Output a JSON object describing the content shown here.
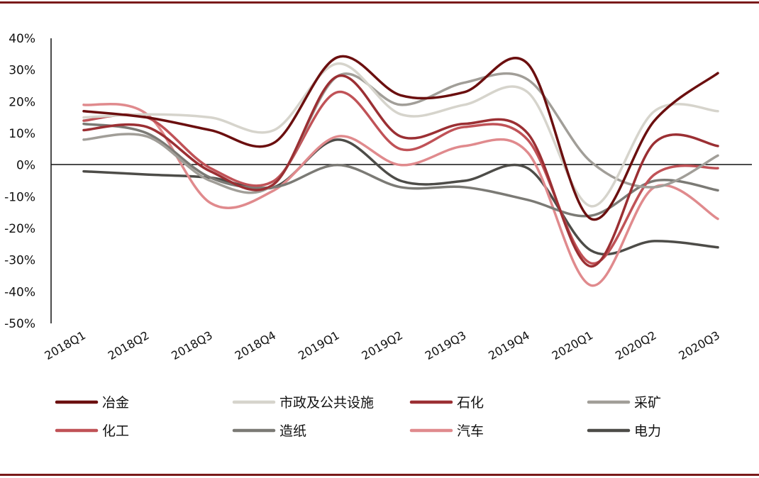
{
  "chart_data": {
    "type": "line",
    "title": "",
    "xlabel": "",
    "ylabel": "",
    "categories": [
      "2018Q1",
      "2018Q2",
      "2018Q3",
      "2018Q4",
      "2019Q1",
      "2019Q2",
      "2019Q3",
      "2019Q4",
      "2020Q1",
      "2020Q2",
      "2020Q3"
    ],
    "ylim": [
      -50,
      40
    ],
    "yticks": [
      -50,
      -40,
      -30,
      -20,
      -10,
      0,
      10,
      20,
      30,
      40
    ],
    "ytick_labels": [
      "-50%",
      "-40%",
      "-30%",
      "-20%",
      "-10%",
      "0%",
      "10%",
      "20%",
      "30%",
      "40%"
    ],
    "grid": false,
    "legend_position": "bottom",
    "series": [
      {
        "name": "冶金",
        "color": "#6b0f0f",
        "values": [
          17,
          15,
          11,
          7,
          34,
          22,
          23,
          32,
          -17,
          14,
          29
        ]
      },
      {
        "name": "市政及公共设施",
        "color": "#d6d4cc",
        "values": [
          15,
          16,
          15,
          11,
          32,
          16,
          19,
          23,
          -13,
          17,
          17
        ]
      },
      {
        "name": "石化",
        "color": "#9b2f33",
        "values": [
          11,
          12,
          -2,
          -6,
          28,
          9,
          13,
          10,
          -32,
          7,
          6
        ]
      },
      {
        "name": "采矿",
        "color": "#a19e98",
        "values": [
          8,
          9,
          -5,
          -6,
          28,
          19,
          26,
          27,
          1,
          -7,
          3
        ]
      },
      {
        "name": "化工",
        "color": "#c05257",
        "values": [
          14,
          15,
          -1,
          -5,
          23,
          5,
          12,
          8,
          -31,
          -3,
          -1
        ]
      },
      {
        "name": "造纸",
        "color": "#7b7a75",
        "values": [
          13,
          10,
          -4,
          -7,
          0,
          -7,
          -7,
          -11,
          -16,
          -5,
          -8
        ]
      },
      {
        "name": "汽车",
        "color": "#e08a8d",
        "values": [
          19,
          16,
          -12,
          -8,
          9,
          0,
          6,
          4,
          -38,
          -7,
          -17
        ]
      },
      {
        "name": "电力",
        "color": "#4d4c48",
        "values": [
          -2,
          -3,
          -4,
          -7,
          8,
          -5,
          -5,
          -1,
          -27,
          -24,
          -26
        ]
      }
    ]
  }
}
